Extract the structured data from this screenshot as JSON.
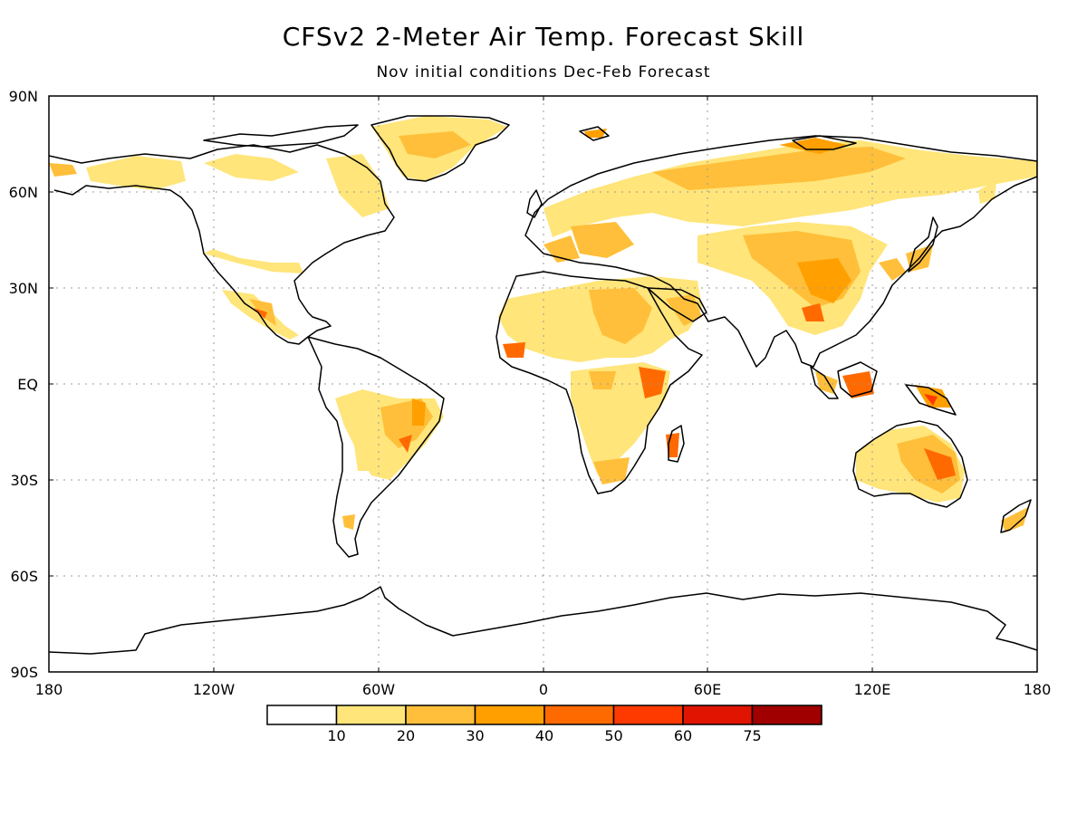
{
  "title": "CFSv2 2-Meter Air Temp. Forecast Skill",
  "subtitle": "Nov initial conditions   Dec-Feb Forecast",
  "lat_labels": [
    "90N",
    "60N",
    "30N",
    "EQ",
    "30S",
    "60S",
    "90S"
  ],
  "lon_labels": [
    "180",
    "120W",
    "60W",
    "0",
    "60E",
    "120E",
    "180"
  ],
  "colorbar": {
    "labels": [
      "10",
      "20",
      "30",
      "40",
      "50",
      "60",
      "75"
    ],
    "colors": [
      "#ffffff",
      "#ffe57a",
      "#ffbf3a",
      "#ffa000",
      "#ff6a00",
      "#ff3a00",
      "#e01400",
      "#a00000"
    ]
  },
  "chart_data": {
    "type": "heatmap",
    "grid": true,
    "xlim": [
      -180,
      180
    ],
    "ylim": [
      -90,
      90
    ],
    "x_ticks": [
      -180,
      -120,
      -60,
      0,
      60,
      120,
      180
    ],
    "y_ticks": [
      90,
      60,
      30,
      0,
      -30,
      -60,
      -90
    ],
    "levels": [
      10,
      20,
      30,
      40,
      50,
      60,
      75
    ]
  }
}
